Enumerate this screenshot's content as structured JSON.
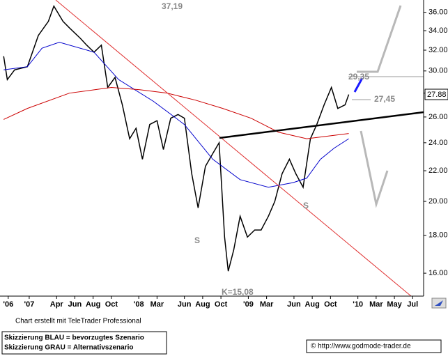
{
  "chart_data": {
    "type": "line",
    "y_scale": "log",
    "xlim": [
      -3.2,
      43.2
    ],
    "ylim": [
      14.9,
      37.4
    ],
    "xticks": [
      {
        "value": -2.3,
        "label": "'06"
      },
      {
        "value": 0,
        "label": "'07"
      },
      {
        "value": 3,
        "label": "Apr"
      },
      {
        "value": 5,
        "label": "Jun"
      },
      {
        "value": 7,
        "label": "Aug"
      },
      {
        "value": 9,
        "label": "Oct"
      },
      {
        "value": 12,
        "label": "'08"
      },
      {
        "value": 14,
        "label": "Mar"
      },
      {
        "value": 17,
        "label": "Jun"
      },
      {
        "value": 19,
        "label": "Aug"
      },
      {
        "value": 21,
        "label": "Oct"
      },
      {
        "value": 24,
        "label": "'09"
      },
      {
        "value": 26,
        "label": "Mar"
      },
      {
        "value": 29,
        "label": "Jun"
      },
      {
        "value": 31,
        "label": "Aug"
      },
      {
        "value": 33,
        "label": "Oct"
      },
      {
        "value": 36,
        "label": "'10"
      },
      {
        "value": 38,
        "label": "Mar"
      },
      {
        "value": 40,
        "label": "May"
      },
      {
        "value": 42,
        "label": "Jul"
      }
    ],
    "yticks": [
      {
        "value": 16,
        "label": "16.00"
      },
      {
        "value": 18,
        "label": "18.00"
      },
      {
        "value": 20,
        "label": "20.00"
      },
      {
        "value": 22,
        "label": "22.00"
      },
      {
        "value": 24,
        "label": "24.00"
      },
      {
        "value": 26,
        "label": "26.00"
      },
      {
        "value": 28,
        "label": "28.00"
      },
      {
        "value": 30,
        "label": "30.00"
      },
      {
        "value": 32,
        "label": "32.00"
      },
      {
        "value": 34,
        "label": "34.00"
      },
      {
        "value": 36,
        "label": "36.00"
      }
    ],
    "series": [
      {
        "color": "#000000",
        "x": [
          -2.8,
          -2.4,
          -1.6,
          -0.2,
          1.0,
          2.1,
          2.7,
          3.7,
          4.4,
          5.6,
          6.3,
          7.1,
          7.9,
          8.6,
          9.4,
          10.2,
          11.0,
          11.7,
          12.4,
          13.2,
          14.0,
          14.7,
          15.5,
          16.3,
          17.0,
          17.8,
          18.5,
          19.3,
          20.1,
          20.8,
          21.4,
          21.8,
          22.4,
          23.1,
          23.9,
          24.7,
          25.4,
          26.2,
          26.9,
          27.7,
          28.5,
          29.2,
          30.0,
          30.8,
          31.5,
          32.3,
          33.1,
          33.8,
          34.6,
          35.0
        ],
        "values": [
          31.4,
          29.2,
          30.1,
          30.4,
          33.5,
          35.0,
          36.7,
          35.0,
          34.3,
          33.2,
          32.5,
          31.8,
          32.5,
          28.5,
          29.4,
          27.0,
          24.3,
          25.1,
          22.8,
          25.4,
          25.7,
          23.5,
          25.9,
          26.2,
          25.9,
          21.8,
          19.6,
          22.3,
          23.2,
          24.0,
          17.9,
          16.1,
          17.2,
          19.1,
          17.9,
          18.3,
          18.3,
          19.1,
          20.0,
          21.8,
          22.8,
          21.8,
          20.9,
          24.3,
          25.4,
          27.0,
          28.5,
          26.7,
          27.0,
          27.88
        ]
      },
      {
        "color": "#0000cc",
        "x": [
          -2.8,
          -0.2,
          1.4,
          3.3,
          7.1,
          9.8,
          13.6,
          17.0,
          20.1,
          23.1,
          26.2,
          28.9,
          30.4,
          31.9,
          33.4,
          35.0
        ],
        "values": [
          30.1,
          30.4,
          32.2,
          32.8,
          31.8,
          29.2,
          27.3,
          25.4,
          22.8,
          21.4,
          20.9,
          21.2,
          21.5,
          22.8,
          23.6,
          24.3
        ]
      },
      {
        "color": "#cc0000",
        "x": [
          -2.8,
          -0.2,
          4.4,
          9.0,
          12.1,
          15.1,
          18.2,
          21.2,
          24.3,
          27.3,
          30.4,
          32.7,
          35.0
        ],
        "values": [
          25.8,
          26.7,
          28.0,
          28.5,
          28.3,
          28.0,
          27.4,
          26.7,
          25.9,
          24.8,
          24.3,
          24.5,
          24.7
        ]
      }
    ],
    "annotations": [
      "37,19",
      "29,35",
      "27,45",
      "K=15,08",
      "S",
      "S",
      "27.88"
    ]
  },
  "footer": {
    "credit": "Chart erstellt mit TeleTrader Professional",
    "legend_blue": "Skizzierung BLAU = bevorzugtes Szenario",
    "legend_gray": "Skizzierung GRAU = Alternativszenario",
    "source": "© http://www.godmode-trader.de"
  }
}
